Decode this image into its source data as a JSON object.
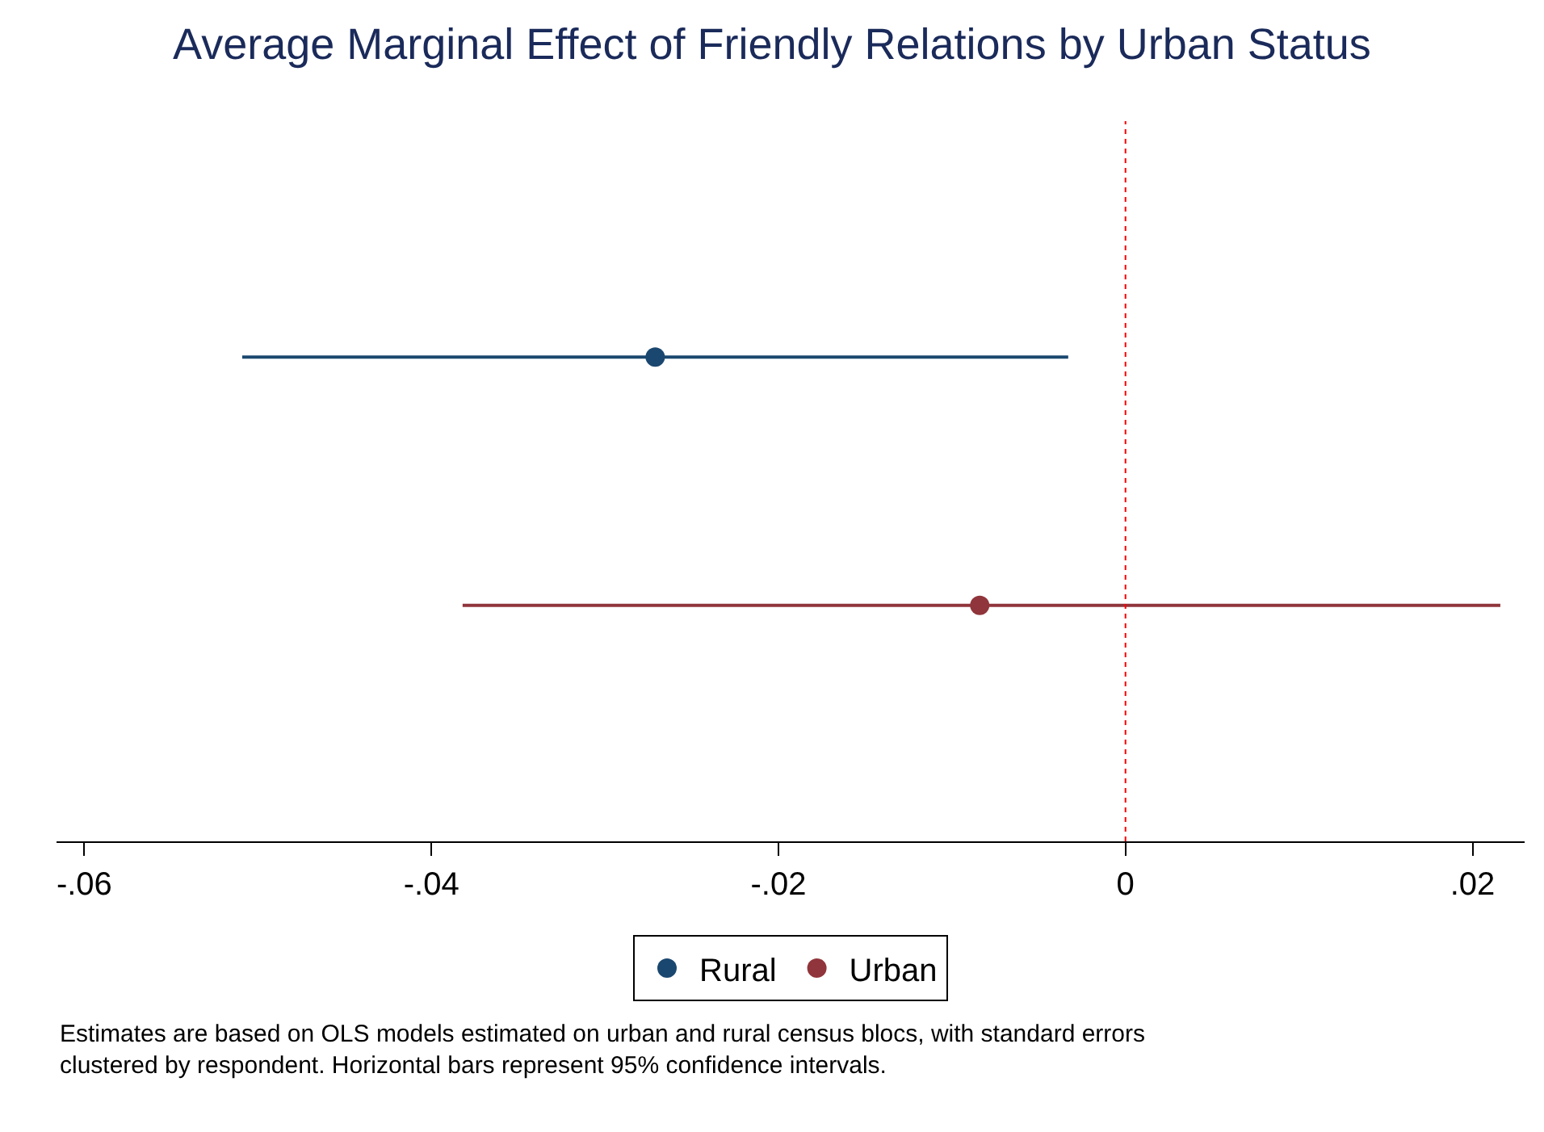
{
  "chart_data": {
    "type": "scatter",
    "orientation": "horizontal",
    "title": "Average Marginal Effect of Friendly Relations by Urban Status",
    "categories": [
      null,
      null
    ],
    "series": [
      {
        "name": "Rural",
        "color": "#1a476f",
        "values": [
          -0.0271,
          null
        ],
        "errors": [
          [
            -0.0509,
            -0.0033
          ],
          null
        ]
      },
      {
        "name": "Urban",
        "color": "#90353b",
        "values": [
          null,
          -0.0084
        ],
        "errors": [
          null,
          [
            -0.0382,
            0.0216
          ]
        ]
      }
    ],
    "xlim": [
      -0.0616,
      0.023
    ],
    "xticks": [
      {
        "value": -0.06,
        "label": "-.06"
      },
      {
        "value": -0.04,
        "label": "-.04"
      },
      {
        "value": -0.02,
        "label": "-.02"
      },
      0,
      {
        "value": 0.02,
        "label": ".02"
      }
    ],
    "ref_lines": [
      {
        "axis": "x",
        "value": 0,
        "color": "#ff0000",
        "line_style": "dotted"
      }
    ],
    "tick_labels": "x",
    "legend": "bottom",
    "marker": "circle",
    "annotations": [
      "Estimates are based on OLS models estimated on urban and rural census blocs, with standard errors clustered by respondent. Horizontal bars represent 95% confidence intervals."
    ]
  }
}
